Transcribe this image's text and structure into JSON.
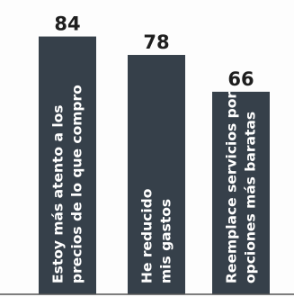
{
  "chart_data": {
    "type": "bar",
    "categories": [
      [
        "Estoy más atento a los",
        "precios de lo que compro"
      ],
      [
        "He reducido",
        "mis gastos"
      ],
      [
        "Reemplace servicios por",
        "opciones más baratas"
      ]
    ],
    "values": [
      84,
      78,
      66
    ],
    "ylim": [
      0,
      100
    ],
    "grid": false,
    "legend": "none",
    "colors": {
      "bar": "#36404a",
      "text_in_bar": "#ffffff",
      "value_label": "#1e1e1e",
      "background": "#fdfdfd"
    }
  }
}
